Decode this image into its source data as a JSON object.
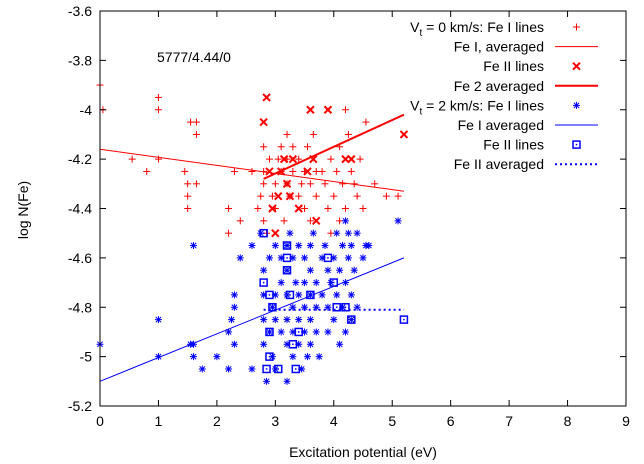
{
  "chart_data": {
    "type": "scatter",
    "annotation": "5777/4.44/0",
    "xlabel": "Excitation potential (eV)",
    "ylabel": "log N(Fe)",
    "xlim": [
      0,
      9
    ],
    "ylim": [
      -5.2,
      -3.6
    ],
    "xticks": [
      "0",
      "1",
      "2",
      "3",
      "4",
      "5",
      "6",
      "7",
      "8",
      "9"
    ],
    "yticks": [
      "-5.2",
      "-5",
      "-4.8",
      "-4.6",
      "-4.4",
      "-4.2",
      "-4",
      "-3.8",
      "-3.6"
    ],
    "legend_position": "top-right",
    "grid": false,
    "colors": {
      "red": "#ff0000",
      "blue": "#0000ff",
      "axis": "#000000"
    },
    "series": [
      {
        "name": "V_t = 0 km/s: Fe I lines",
        "kind": "points",
        "marker": "plus",
        "color": "#ff0000",
        "points": [
          [
            0.0,
            -3.9
          ],
          [
            0.05,
            -4.0
          ],
          [
            0.55,
            -4.2
          ],
          [
            1.0,
            -3.95
          ],
          [
            1.0,
            -4.0
          ],
          [
            0.8,
            -4.25
          ],
          [
            1.0,
            -4.2
          ],
          [
            1.45,
            -4.25
          ],
          [
            1.5,
            -4.3
          ],
          [
            1.5,
            -4.35
          ],
          [
            1.5,
            -4.4
          ],
          [
            1.55,
            -4.05
          ],
          [
            1.65,
            -4.05
          ],
          [
            1.65,
            -4.1
          ],
          [
            1.65,
            -4.3
          ],
          [
            2.2,
            -4.4
          ],
          [
            2.2,
            -4.5
          ],
          [
            2.3,
            -4.25
          ],
          [
            2.4,
            -4.45
          ],
          [
            2.6,
            -4.25
          ],
          [
            2.7,
            -4.4
          ],
          [
            2.75,
            -4.35
          ],
          [
            2.8,
            -4.15
          ],
          [
            2.8,
            -4.25
          ],
          [
            2.8,
            -4.3
          ],
          [
            2.8,
            -4.45
          ],
          [
            2.85,
            -4.5
          ],
          [
            2.9,
            -4.2
          ],
          [
            2.95,
            -4.35
          ],
          [
            3.0,
            -4.3
          ],
          [
            3.0,
            -4.4
          ],
          [
            3.05,
            -4.2
          ],
          [
            3.1,
            -4.15
          ],
          [
            3.1,
            -4.25
          ],
          [
            3.15,
            -4.45
          ],
          [
            3.2,
            -4.1
          ],
          [
            3.2,
            -4.2
          ],
          [
            3.2,
            -4.3
          ],
          [
            3.25,
            -4.35
          ],
          [
            3.3,
            -4.15
          ],
          [
            3.3,
            -4.25
          ],
          [
            3.4,
            -4.2
          ],
          [
            3.4,
            -4.35
          ],
          [
            3.45,
            -4.3
          ],
          [
            3.5,
            -4.25
          ],
          [
            3.5,
            -4.4
          ],
          [
            3.55,
            -4.15
          ],
          [
            3.6,
            -4.3
          ],
          [
            3.6,
            -4.45
          ],
          [
            3.65,
            -4.1
          ],
          [
            3.7,
            -4.25
          ],
          [
            3.7,
            -4.35
          ],
          [
            3.8,
            -4.25
          ],
          [
            3.85,
            -4.3
          ],
          [
            3.9,
            -4.4
          ],
          [
            3.95,
            -4.2
          ],
          [
            3.95,
            -4.5
          ],
          [
            4.0,
            -4.35
          ],
          [
            4.05,
            -4.25
          ],
          [
            4.1,
            -4.15
          ],
          [
            4.1,
            -4.45
          ],
          [
            4.15,
            -4.3
          ],
          [
            4.2,
            -4.0
          ],
          [
            4.2,
            -4.4
          ],
          [
            4.25,
            -4.1
          ],
          [
            4.3,
            -4.25
          ],
          [
            4.35,
            -4.3
          ],
          [
            4.4,
            -4.35
          ],
          [
            4.45,
            -4.2
          ],
          [
            4.5,
            -4.4
          ],
          [
            4.55,
            -4.05
          ],
          [
            4.7,
            -4.3
          ],
          [
            4.9,
            -4.35
          ],
          [
            5.1,
            -4.35
          ]
        ]
      },
      {
        "name": "Fe I, averaged",
        "kind": "line",
        "style": "solid",
        "width": 1,
        "color": "#ff0000",
        "points": [
          [
            0.0,
            -4.16
          ],
          [
            5.2,
            -4.33
          ]
        ]
      },
      {
        "name": "Fe II lines",
        "kind": "points",
        "marker": "cross",
        "color": "#ff0000",
        "points": [
          [
            2.8,
            -4.05
          ],
          [
            2.85,
            -3.95
          ],
          [
            2.9,
            -4.25
          ],
          [
            2.95,
            -4.4
          ],
          [
            3.0,
            -4.5
          ],
          [
            3.05,
            -4.35
          ],
          [
            3.1,
            -4.25
          ],
          [
            3.15,
            -4.2
          ],
          [
            3.2,
            -4.3
          ],
          [
            3.25,
            -4.35
          ],
          [
            3.3,
            -4.2
          ],
          [
            3.4,
            -4.4
          ],
          [
            3.55,
            -4.25
          ],
          [
            3.6,
            -4.0
          ],
          [
            3.65,
            -4.2
          ],
          [
            3.7,
            -4.45
          ],
          [
            3.9,
            -4.0
          ],
          [
            4.2,
            -4.2
          ],
          [
            4.3,
            -4.2
          ],
          [
            5.2,
            -4.1
          ]
        ]
      },
      {
        "name": "Fe 2 averaged",
        "kind": "line",
        "style": "solid",
        "width": 2,
        "color": "#ff0000",
        "points": [
          [
            2.8,
            -4.28
          ],
          [
            5.2,
            -4.02
          ]
        ]
      },
      {
        "name": "V_t = 2 km/s: Fe I lines",
        "kind": "points",
        "marker": "star",
        "color": "#0000ff",
        "points": [
          [
            0.0,
            -4.95
          ],
          [
            1.0,
            -5.0
          ],
          [
            1.0,
            -4.85
          ],
          [
            1.55,
            -4.95
          ],
          [
            1.6,
            -4.55
          ],
          [
            1.6,
            -4.95
          ],
          [
            1.6,
            -5.0
          ],
          [
            1.75,
            -5.05
          ],
          [
            2.0,
            -5.0
          ],
          [
            2.2,
            -4.9
          ],
          [
            2.2,
            -5.05
          ],
          [
            2.25,
            -4.85
          ],
          [
            2.3,
            -4.75
          ],
          [
            2.3,
            -4.8
          ],
          [
            2.3,
            -4.95
          ],
          [
            2.4,
            -4.6
          ],
          [
            2.6,
            -4.55
          ],
          [
            2.6,
            -5.05
          ],
          [
            2.75,
            -4.5
          ],
          [
            2.8,
            -4.65
          ],
          [
            2.8,
            -4.75
          ],
          [
            2.8,
            -4.85
          ],
          [
            2.8,
            -4.95
          ],
          [
            2.85,
            -5.1
          ],
          [
            2.9,
            -4.6
          ],
          [
            2.9,
            -4.9
          ],
          [
            2.95,
            -4.8
          ],
          [
            2.95,
            -5.0
          ],
          [
            3.0,
            -4.55
          ],
          [
            3.0,
            -4.75
          ],
          [
            3.0,
            -4.85
          ],
          [
            3.0,
            -5.05
          ],
          [
            3.1,
            -4.6
          ],
          [
            3.1,
            -4.7
          ],
          [
            3.1,
            -4.9
          ],
          [
            3.2,
            -4.55
          ],
          [
            3.2,
            -4.65
          ],
          [
            3.2,
            -4.75
          ],
          [
            3.2,
            -4.85
          ],
          [
            3.2,
            -4.95
          ],
          [
            3.2,
            -5.1
          ],
          [
            3.25,
            -4.5
          ],
          [
            3.3,
            -4.6
          ],
          [
            3.3,
            -4.8
          ],
          [
            3.3,
            -4.9
          ],
          [
            3.3,
            -5.0
          ],
          [
            3.35,
            -4.7
          ],
          [
            3.4,
            -4.55
          ],
          [
            3.4,
            -4.75
          ],
          [
            3.4,
            -4.85
          ],
          [
            3.4,
            -4.95
          ],
          [
            3.45,
            -5.05
          ],
          [
            3.5,
            -4.6
          ],
          [
            3.5,
            -4.7
          ],
          [
            3.5,
            -4.8
          ],
          [
            3.5,
            -4.9
          ],
          [
            3.55,
            -5.0
          ],
          [
            3.6,
            -4.55
          ],
          [
            3.6,
            -4.65
          ],
          [
            3.6,
            -4.75
          ],
          [
            3.6,
            -4.85
          ],
          [
            3.6,
            -4.95
          ],
          [
            3.65,
            -4.5
          ],
          [
            3.7,
            -4.7
          ],
          [
            3.7,
            -4.8
          ],
          [
            3.7,
            -4.9
          ],
          [
            3.75,
            -5.0
          ],
          [
            3.8,
            -4.6
          ],
          [
            3.8,
            -4.75
          ],
          [
            3.85,
            -4.55
          ],
          [
            3.9,
            -4.65
          ],
          [
            3.9,
            -4.8
          ],
          [
            3.9,
            -4.9
          ],
          [
            3.95,
            -4.7
          ],
          [
            4.0,
            -4.6
          ],
          [
            4.0,
            -4.85
          ],
          [
            4.05,
            -4.5
          ],
          [
            4.05,
            -4.75
          ],
          [
            4.1,
            -4.65
          ],
          [
            4.1,
            -4.95
          ],
          [
            4.15,
            -4.55
          ],
          [
            4.15,
            -4.8
          ],
          [
            4.2,
            -4.45
          ],
          [
            4.2,
            -4.7
          ],
          [
            4.2,
            -4.9
          ],
          [
            4.25,
            -4.5
          ],
          [
            4.25,
            -4.6
          ],
          [
            4.3,
            -4.55
          ],
          [
            4.3,
            -4.75
          ],
          [
            4.3,
            -4.85
          ],
          [
            4.35,
            -4.65
          ],
          [
            4.4,
            -4.5
          ],
          [
            4.4,
            -4.8
          ],
          [
            4.5,
            -4.6
          ],
          [
            4.55,
            -4.55
          ],
          [
            4.6,
            -4.55
          ],
          [
            5.1,
            -4.45
          ]
        ]
      },
      {
        "name": "Fe I averaged",
        "kind": "line",
        "style": "solid",
        "width": 1,
        "color": "#0000ff",
        "points": [
          [
            0.0,
            -5.1
          ],
          [
            5.2,
            -4.6
          ]
        ]
      },
      {
        "name": "Fe II lines",
        "kind": "points",
        "marker": "box",
        "color": "#0000ff",
        "points": [
          [
            2.8,
            -4.5
          ],
          [
            2.8,
            -4.7
          ],
          [
            2.85,
            -5.05
          ],
          [
            2.9,
            -4.75
          ],
          [
            2.9,
            -4.9
          ],
          [
            2.9,
            -5.0
          ],
          [
            2.95,
            -4.8
          ],
          [
            3.05,
            -5.05
          ],
          [
            3.2,
            -4.55
          ],
          [
            3.2,
            -4.6
          ],
          [
            3.2,
            -4.65
          ],
          [
            3.25,
            -4.75
          ],
          [
            3.3,
            -4.95
          ],
          [
            3.35,
            -5.05
          ],
          [
            3.4,
            -4.9
          ],
          [
            3.6,
            -4.75
          ],
          [
            3.9,
            -4.6
          ],
          [
            4.0,
            -4.7
          ],
          [
            4.05,
            -4.8
          ],
          [
            4.2,
            -4.8
          ],
          [
            4.3,
            -4.85
          ],
          [
            5.2,
            -4.85
          ]
        ]
      },
      {
        "name": "Fe II averaged",
        "kind": "line",
        "style": "dotted",
        "width": 2,
        "color": "#0000ff",
        "points": [
          [
            2.8,
            -4.81
          ],
          [
            5.2,
            -4.81
          ]
        ]
      }
    ]
  }
}
